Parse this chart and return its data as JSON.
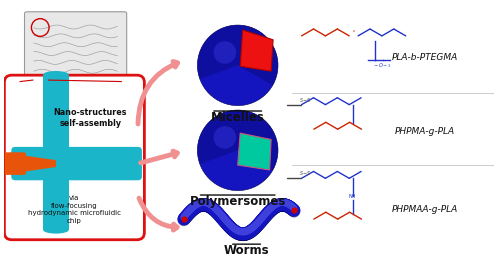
{
  "bg_color": "#ffffff",
  "chip_box_color": "#dd1111",
  "chip_box_fill": "#ffffff",
  "chip_cyan_color": "#1ab5c8",
  "chip_orange_color": "#e8550a",
  "sphere_blue": "#1515c0",
  "sphere_blue_dark": "#0a0a80",
  "sphere_blue_light": "#3535e0",
  "sphere_red_patch": "#ee1111",
  "sphere_teal_patch": "#00c9a0",
  "sphere_pink_outline": "#cc5577",
  "worm_blue": "#1515c0",
  "worm_blue_light": "#4040dd",
  "arrow_color": "#f09090",
  "arrow_edge": "#cc4466",
  "label_micelles": "Micelles",
  "label_polymersomes": "Polymersomes",
  "label_worms": "Worms",
  "label_nano": "Nano-structures\nself-assembly",
  "label_via": "via\nflow-focusing\nhydrodynamic microfluidic\nchip",
  "chem1": "PLA-b-PTEGMA",
  "chem2": "PHPMA-g-PLA",
  "chem3": "PHPMAA-g-PLA",
  "label_color": "#111111",
  "chem_red": "#cc2200",
  "chem_blue": "#2233cc",
  "chem_gray": "#444444"
}
